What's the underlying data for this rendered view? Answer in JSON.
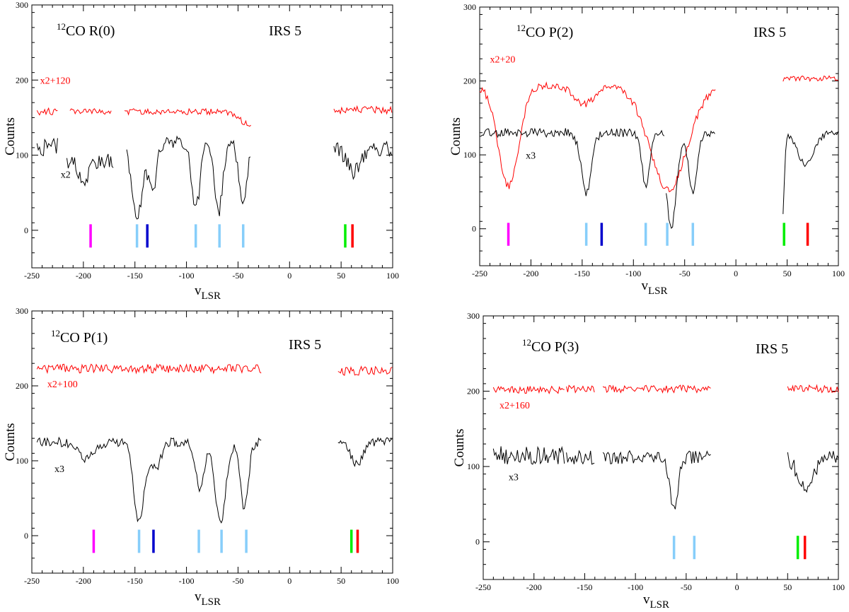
{
  "figure": {
    "description": ""
  },
  "chart_data": [
    {
      "type": "line",
      "title": "12CO R(0)",
      "title_iso": "12",
      "title_main": "CO R(0)",
      "source": "IRS 5",
      "xlabel_main": "v",
      "xlabel_sub": "LSR",
      "ylabel": "Counts",
      "xlim": [
        -250,
        100
      ],
      "ylim": [
        -50,
        300
      ],
      "xticks": [
        -250,
        -200,
        -150,
        -100,
        -50,
        0,
        50,
        100
      ],
      "yticks": [
        0,
        100,
        200,
        300
      ],
      "series": [
        {
          "name": "x2+120",
          "color": "#ff0000",
          "segments": [
            {
              "x0": -245,
              "x1": -225,
              "base": 158,
              "noise": 5,
              "dips": []
            },
            {
              "x0": -213,
              "x1": -172,
              "base": 158,
              "noise": 4,
              "dips": []
            },
            {
              "x0": -160,
              "x1": -37,
              "base": 158,
              "noise": 4,
              "tail": 20,
              "dips": []
            },
            {
              "x0": 43,
              "x1": 100,
              "base": 160,
              "noise": 5,
              "dips": []
            }
          ]
        },
        {
          "name": "x2",
          "color": "#000000",
          "segments": [
            {
              "x0": -245,
              "x1": -225,
              "base": 110,
              "noise": 14,
              "dips": []
            },
            {
              "x0": -216,
              "x1": -170,
              "base": 92,
              "noise": 10,
              "dips": [
                {
                  "c": -200,
                  "d": 30,
                  "w": 4
                }
              ]
            },
            {
              "x0": -158,
              "x1": -37,
              "base": 118,
              "noise": 9,
              "dips": [
                {
                  "c": -148,
                  "d": 105,
                  "w": 5
                },
                {
                  "c": -133,
                  "d": 65,
                  "w": 4
                },
                {
                  "c": -91,
                  "d": 90,
                  "w": 4
                },
                {
                  "c": -69,
                  "d": 95,
                  "w": 4
                },
                {
                  "c": -45,
                  "d": 80,
                  "w": 4
                }
              ]
            },
            {
              "x0": 43,
              "x1": 100,
              "base": 108,
              "noise": 10,
              "dips": [
                {
                  "c": 62,
                  "d": 30,
                  "w": 6
                }
              ]
            }
          ]
        }
      ],
      "labels": [
        {
          "text": "x2+120",
          "color": "#ff0000",
          "x": -242,
          "y": 195
        },
        {
          "text": "x2",
          "color": "#000000",
          "x": -222,
          "y": 70
        }
      ],
      "markers": [
        {
          "x": -193,
          "color": "#ff00ff"
        },
        {
          "x": -148,
          "color": "#87cefa"
        },
        {
          "x": -138,
          "color": "#0000cd"
        },
        {
          "x": -91,
          "color": "#87cefa"
        },
        {
          "x": -68,
          "color": "#87cefa"
        },
        {
          "x": -45,
          "color": "#87cefa"
        },
        {
          "x": 54,
          "color": "#00ee00"
        },
        {
          "x": 61,
          "color": "#ff0000"
        }
      ]
    },
    {
      "type": "line",
      "title": "12CO P(2)",
      "title_iso": "12",
      "title_main": "CO P(2)",
      "source": "IRS 5",
      "xlabel_main": "v",
      "xlabel_sub": "LSR",
      "ylabel": "Counts",
      "xlim": [
        -250,
        100
      ],
      "ylim": [
        -50,
        300
      ],
      "xticks": [
        -250,
        -200,
        -150,
        -100,
        -50,
        0,
        50,
        100
      ],
      "yticks": [
        0,
        100,
        200,
        300
      ],
      "series": [
        {
          "name": "x2+20",
          "color": "#ff0000",
          "segments": [
            {
              "x0": -250,
              "x1": -20,
              "base": 193,
              "noise": 5,
              "dips": [
                {
                  "c": -222,
                  "d": 135,
                  "w": 10
                },
                {
                  "c": -148,
                  "d": 25,
                  "w": 9
                },
                {
                  "c": -66,
                  "d": 140,
                  "w": 18
                }
              ]
            },
            {
              "x0": 46,
              "x1": 100,
              "base": 203,
              "noise": 4,
              "dips": []
            }
          ]
        },
        {
          "name": "x3",
          "color": "#000000",
          "segments": [
            {
              "x0": -250,
              "x1": -70,
              "base": 130,
              "noise": 6,
              "dips": [
                {
                  "c": -146,
                  "d": 80,
                  "w": 5
                },
                {
                  "c": -88,
                  "d": 70,
                  "w": 4
                }
              ]
            },
            {
              "x0": -68,
              "x1": -20,
              "base": 128,
              "noise": 5,
              "dips": [
                {
                  "c": -63,
                  "d": 125,
                  "w": 5
                },
                {
                  "c": -42,
                  "d": 80,
                  "w": 4
                }
              ]
            },
            {
              "x0": 46,
              "x1": 100,
              "base": 130,
              "noise": 4,
              "dips": [
                {
                  "c": 45,
                  "d": 120,
                  "w": 2
                },
                {
                  "c": 68,
                  "d": 42,
                  "w": 8
                }
              ]
            }
          ]
        }
      ],
      "labels": [
        {
          "text": "x2+20",
          "color": "#ff0000",
          "x": -240,
          "y": 225
        },
        {
          "text": "x3",
          "color": "#000000",
          "x": -205,
          "y": 95
        }
      ],
      "markers": [
        {
          "x": -222,
          "color": "#ff00ff"
        },
        {
          "x": -146,
          "color": "#87cefa"
        },
        {
          "x": -131,
          "color": "#0000cd"
        },
        {
          "x": -88,
          "color": "#87cefa"
        },
        {
          "x": -67,
          "color": "#87cefa"
        },
        {
          "x": -42,
          "color": "#87cefa"
        },
        {
          "x": 47,
          "color": "#00ee00"
        },
        {
          "x": 70,
          "color": "#ff0000"
        }
      ]
    },
    {
      "type": "line",
      "title": "12CO P(1)",
      "title_iso": "12",
      "title_main": "CO P(1)",
      "source": "IRS 5",
      "xlabel_main": "v",
      "xlabel_sub": "LSR",
      "ylabel": "Counts",
      "xlim": [
        -250,
        100
      ],
      "ylim": [
        -50,
        300
      ],
      "xticks": [
        -250,
        -200,
        -150,
        -100,
        -50,
        0,
        50,
        100
      ],
      "yticks": [
        0,
        100,
        200,
        300
      ],
      "series": [
        {
          "name": "x2+100",
          "color": "#ff0000",
          "segments": [
            {
              "x0": -245,
              "x1": -27,
              "base": 223,
              "noise": 6,
              "dips": []
            },
            {
              "x0": 47,
              "x1": 100,
              "base": 220,
              "noise": 6,
              "dips": []
            }
          ]
        },
        {
          "name": "x3",
          "color": "#000000",
          "segments": [
            {
              "x0": -245,
              "x1": -27,
              "base": 125,
              "noise": 6,
              "dips": [
                {
                  "c": -197,
                  "d": 22,
                  "w": 8
                },
                {
                  "c": -146,
                  "d": 108,
                  "w": 5
                },
                {
                  "c": -130,
                  "d": 35,
                  "w": 5
                },
                {
                  "c": -87,
                  "d": 65,
                  "w": 4
                },
                {
                  "c": -67,
                  "d": 110,
                  "w": 5
                },
                {
                  "c": -44,
                  "d": 88,
                  "w": 4
                }
              ]
            },
            {
              "x0": 47,
              "x1": 100,
              "base": 125,
              "noise": 6,
              "dips": [
                {
                  "c": 65,
                  "d": 30,
                  "w": 6
                }
              ]
            }
          ]
        }
      ],
      "labels": [
        {
          "text": "x2+100",
          "color": "#ff0000",
          "x": -235,
          "y": 198
        },
        {
          "text": "x3",
          "color": "#000000",
          "x": -228,
          "y": 85
        }
      ],
      "markers": [
        {
          "x": -190,
          "color": "#ff00ff"
        },
        {
          "x": -146,
          "color": "#87cefa"
        },
        {
          "x": -132,
          "color": "#0000cd"
        },
        {
          "x": -88,
          "color": "#87cefa"
        },
        {
          "x": -66,
          "color": "#87cefa"
        },
        {
          "x": -42,
          "color": "#87cefa"
        },
        {
          "x": 60,
          "color": "#00ee00"
        },
        {
          "x": 66,
          "color": "#ff0000"
        }
      ]
    },
    {
      "type": "line",
      "title": "12CO P(3)",
      "title_iso": "12",
      "title_main": "CO P(3)",
      "source": "IRS 5",
      "xlabel_main": "v",
      "xlabel_sub": "LSR",
      "ylabel": "Counts",
      "xlim": [
        -250,
        100
      ],
      "ylim": [
        -50,
        300
      ],
      "xticks": [
        -250,
        -200,
        -150,
        -100,
        -50,
        0,
        50,
        100
      ],
      "yticks": [
        0,
        100,
        200,
        300
      ],
      "series": [
        {
          "name": "x2+160",
          "color": "#ff0000",
          "segments": [
            {
              "x0": -240,
              "x1": -170,
              "base": 202,
              "noise": 5,
              "dips": []
            },
            {
              "x0": -168,
              "x1": -140,
              "base": 203,
              "noise": 5,
              "dips": []
            },
            {
              "x0": -132,
              "x1": -25,
              "base": 203,
              "noise": 5,
              "dips": []
            },
            {
              "x0": 50,
              "x1": 100,
              "base": 203,
              "noise": 5,
              "dips": []
            }
          ]
        },
        {
          "name": "x3",
          "color": "#000000",
          "segments": [
            {
              "x0": -240,
              "x1": -170,
              "base": 115,
              "noise": 12,
              "dips": []
            },
            {
              "x0": -168,
              "x1": -140,
              "base": 112,
              "noise": 9,
              "dips": []
            },
            {
              "x0": -132,
              "x1": -25,
              "base": 112,
              "noise": 9,
              "dips": [
                {
                  "c": -62,
                  "d": 65,
                  "w": 4
                }
              ]
            },
            {
              "x0": 50,
              "x1": 100,
              "base": 115,
              "noise": 10,
              "dips": [
                {
                  "c": 68,
                  "d": 45,
                  "w": 8
                }
              ]
            }
          ]
        }
      ],
      "labels": [
        {
          "text": "x2+160",
          "color": "#ff0000",
          "x": -234,
          "y": 177
        },
        {
          "text": "x3",
          "color": "#000000",
          "x": -225,
          "y": 82
        }
      ],
      "markers": [
        {
          "x": -62,
          "color": "#87cefa"
        },
        {
          "x": -42,
          "color": "#87cefa"
        },
        {
          "x": 60,
          "color": "#00ee00"
        },
        {
          "x": 67,
          "color": "#ff0000"
        }
      ]
    }
  ]
}
